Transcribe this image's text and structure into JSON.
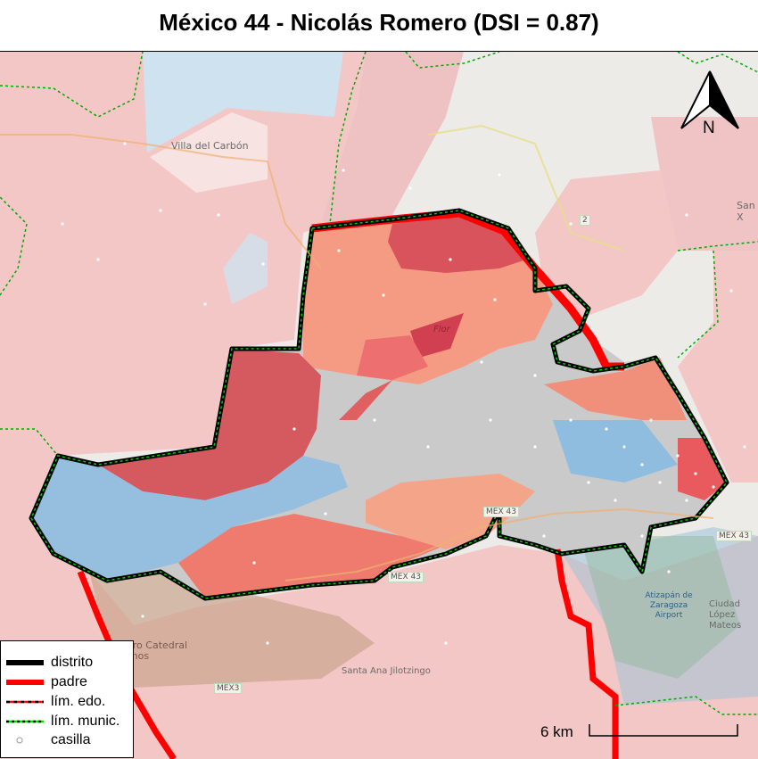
{
  "title": "México 44 - Nicolás Romero (DSI = 0.87)",
  "map": {
    "place_labels": {
      "villa_carbon": "Villa del Carbón",
      "flor": "Flor",
      "sanx": "San X",
      "cathedral": "Cerro Catedral Tachos",
      "santa_ana": "Santa Ana Jilotzingo",
      "atizapan": "Atizapán de Zaragoza Airport",
      "ciudad_lopez": "Ciudad López Mateos"
    },
    "road_labels": {
      "mex43_a": "MEX 43",
      "mex43_b": "MEX 43",
      "mex3": "MEX3",
      "mex_right": "MEX 43",
      "shield_2": "2"
    },
    "colors": {
      "district_outline": "#000000",
      "parent_outline": "#ff0000",
      "state_line": "#ff0000",
      "municipal_line": "#00cc00",
      "high": "#d9535c",
      "mid": "#f0907a",
      "low": "#f7c1b8",
      "blue": "#8fbfe0",
      "grey": "#c8c8c8"
    }
  },
  "north_arrow": {
    "label": "N"
  },
  "legend": {
    "items": [
      {
        "label": "distrito",
        "symbol": "thick-black-line"
      },
      {
        "label": "padre",
        "symbol": "thick-red-line"
      },
      {
        "label": "lím. edo.",
        "symbol": "red-black-dashed-line"
      },
      {
        "label": "lím. munic.",
        "symbol": "green-black-dashed-line"
      },
      {
        "label": "casilla",
        "symbol": "white-dot"
      }
    ]
  },
  "scale_bar": {
    "label": "6 km"
  }
}
